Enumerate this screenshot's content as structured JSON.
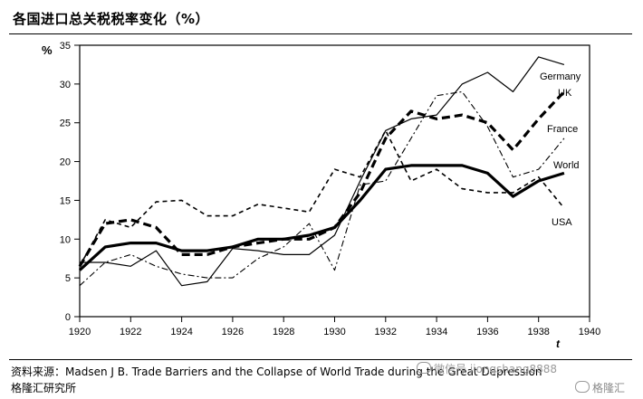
{
  "header": {
    "title": "各国进口总关税税率变化（%）"
  },
  "footer": {
    "source": "资料来源：Madsen J B. Trade Barriers and the Collapse of World Trade during the Great Depression 格隆汇研究所"
  },
  "watermarks": {
    "wechat": "微信号 jiongshang8888",
    "brand": "格隆汇"
  },
  "chart_data": {
    "type": "line",
    "title": "",
    "xlabel": "t",
    "ylabel": "%",
    "xlim": [
      1920,
      1940
    ],
    "ylim": [
      0,
      35
    ],
    "xticks": [
      1920,
      1922,
      1924,
      1926,
      1928,
      1930,
      1932,
      1934,
      1936,
      1938,
      1940
    ],
    "yticks": [
      0,
      5,
      10,
      15,
      20,
      25,
      30,
      35
    ],
    "grid": false,
    "legend": "labels at line ends (right)",
    "series": [
      {
        "name": "Germany",
        "style": "thin solid",
        "x": [
          1920,
          1921,
          1922,
          1923,
          1924,
          1925,
          1926,
          1927,
          1928,
          1929,
          1930,
          1931,
          1932,
          1933,
          1934,
          1935,
          1936,
          1937,
          1938,
          1939
        ],
        "y": [
          7.0,
          7.0,
          6.5,
          8.5,
          4.0,
          4.5,
          8.8,
          8.5,
          8.0,
          8.0,
          10.5,
          17.5,
          24.0,
          25.5,
          26.0,
          30.0,
          31.5,
          29.0,
          33.5,
          32.5
        ]
      },
      {
        "name": "UK",
        "style": "thick dashed",
        "x": [
          1920,
          1921,
          1922,
          1923,
          1924,
          1925,
          1926,
          1927,
          1928,
          1929,
          1930,
          1931,
          1932,
          1933,
          1934,
          1935,
          1936,
          1937,
          1938,
          1939
        ],
        "y": [
          6.5,
          12.0,
          12.5,
          11.5,
          8.0,
          8.0,
          9.0,
          9.5,
          10.0,
          10.0,
          11.5,
          16.0,
          23.0,
          26.5,
          25.5,
          26.0,
          25.0,
          21.5,
          25.5,
          29.0
        ]
      },
      {
        "name": "France",
        "style": "thin dash-dot",
        "x": [
          1920,
          1921,
          1922,
          1923,
          1924,
          1925,
          1926,
          1927,
          1928,
          1929,
          1930,
          1931,
          1932,
          1933,
          1934,
          1935,
          1936,
          1937,
          1938,
          1939
        ],
        "y": [
          4.0,
          7.0,
          8.0,
          6.5,
          5.5,
          5.0,
          5.0,
          7.5,
          9.0,
          12.0,
          6.0,
          17.0,
          17.5,
          23.0,
          28.5,
          29.0,
          24.5,
          18.0,
          19.0,
          23.0
        ]
      },
      {
        "name": "World",
        "style": "thick solid",
        "x": [
          1920,
          1921,
          1922,
          1923,
          1924,
          1925,
          1926,
          1927,
          1928,
          1929,
          1930,
          1931,
          1932,
          1933,
          1934,
          1935,
          1936,
          1937,
          1938,
          1939
        ],
        "y": [
          6.0,
          9.0,
          9.5,
          9.5,
          8.5,
          8.5,
          9.0,
          10.0,
          10.0,
          10.5,
          11.5,
          15.0,
          19.0,
          19.5,
          19.5,
          19.5,
          18.5,
          15.5,
          17.5,
          18.5
        ]
      },
      {
        "name": "USA",
        "style": "thin dashed",
        "x": [
          1920,
          1921,
          1922,
          1923,
          1924,
          1925,
          1926,
          1927,
          1928,
          1929,
          1930,
          1931,
          1932,
          1933,
          1934,
          1935,
          1936,
          1937,
          1938,
          1939
        ],
        "y": [
          6.5,
          12.5,
          11.5,
          14.8,
          15.0,
          13.0,
          13.0,
          14.5,
          14.0,
          13.5,
          19.0,
          18.0,
          24.0,
          17.5,
          19.0,
          16.5,
          16.0,
          16.0,
          18.0,
          14.0
        ]
      }
    ]
  }
}
